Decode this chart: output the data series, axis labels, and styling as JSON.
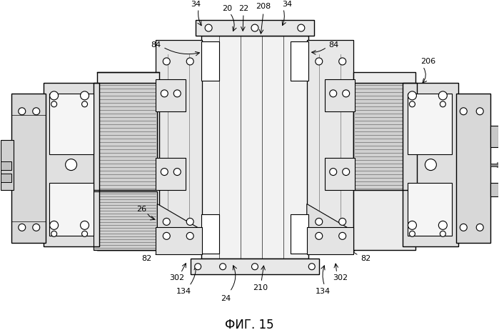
{
  "fig_label": "ФИГ. 15",
  "background_color": "#ffffff",
  "line_color": "#000000",
  "figsize": [
    6.99,
    4.69
  ],
  "dpi": 100
}
